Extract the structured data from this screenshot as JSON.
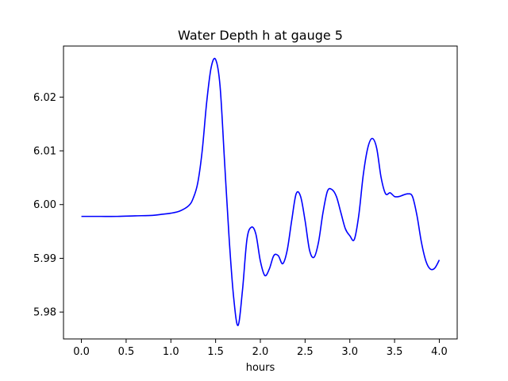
{
  "chart_data": {
    "type": "line",
    "title": "Water Depth h at gauge 5",
    "xlabel": "hours",
    "ylabel": "",
    "xlim": [
      -0.2,
      4.2
    ],
    "ylim": [
      5.975,
      6.0295
    ],
    "x_ticks": [
      0.0,
      0.5,
      1.0,
      1.5,
      2.0,
      2.5,
      3.0,
      3.5,
      4.0
    ],
    "x_tick_labels": [
      "0.0",
      "0.5",
      "1.0",
      "1.5",
      "2.0",
      "2.5",
      "3.0",
      "3.5",
      "4.0"
    ],
    "y_ticks": [
      5.98,
      5.99,
      6.0,
      6.01,
      6.02
    ],
    "y_tick_labels": [
      "5.98",
      "5.99",
      "6.00",
      "6.01",
      "6.02"
    ],
    "grid": false,
    "series": [
      {
        "color": "#0000ff",
        "x": [
          0.0,
          0.2,
          0.4,
          0.6,
          0.8,
          0.9,
          1.0,
          1.1,
          1.2,
          1.25,
          1.3,
          1.35,
          1.4,
          1.45,
          1.5,
          1.55,
          1.6,
          1.65,
          1.7,
          1.75,
          1.8,
          1.85,
          1.9,
          1.95,
          2.0,
          2.05,
          2.1,
          2.15,
          2.2,
          2.25,
          2.3,
          2.35,
          2.4,
          2.45,
          2.5,
          2.55,
          2.6,
          2.65,
          2.7,
          2.75,
          2.8,
          2.85,
          2.9,
          2.95,
          3.0,
          3.05,
          3.1,
          3.15,
          3.2,
          3.25,
          3.3,
          3.35,
          3.4,
          3.45,
          3.5,
          3.55,
          3.6,
          3.65,
          3.7,
          3.75,
          3.8,
          3.85,
          3.9,
          3.95,
          4.0
        ],
        "y": [
          5.9978,
          5.9978,
          5.9978,
          5.9979,
          5.998,
          5.9982,
          5.9984,
          5.9988,
          5.9998,
          6.0012,
          6.004,
          6.01,
          6.019,
          6.0255,
          6.027,
          6.022,
          6.008,
          5.994,
          5.983,
          5.9775,
          5.984,
          5.9935,
          5.9958,
          5.9945,
          5.9895,
          5.9868,
          5.988,
          5.9905,
          5.9905,
          5.989,
          5.9915,
          5.997,
          6.002,
          6.0015,
          5.997,
          5.9915,
          5.9902,
          5.993,
          5.9985,
          6.0025,
          6.0028,
          6.0015,
          5.9985,
          5.9955,
          5.9942,
          5.9935,
          5.998,
          6.0055,
          6.0105,
          6.0123,
          6.0105,
          6.005,
          6.002,
          6.0022,
          6.0015,
          6.0015,
          6.0018,
          6.002,
          6.0015,
          5.998,
          5.993,
          5.9895,
          5.988,
          5.9882,
          5.9897
        ]
      }
    ]
  }
}
